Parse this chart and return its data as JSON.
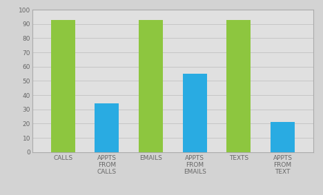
{
  "categories": [
    "CALLS",
    "APPTS\nFROM\nCALLS",
    "EMAILS",
    "APPTS\nFROM\nEMAILS",
    "TEXTS",
    "APPTS\nFROM\nTEXT"
  ],
  "values": [
    93,
    34,
    93,
    55,
    93,
    21
  ],
  "bar_colors": [
    "#8dc63f",
    "#29abe2",
    "#8dc63f",
    "#29abe2",
    "#8dc63f",
    "#29abe2"
  ],
  "ylim": [
    0,
    100
  ],
  "yticks": [
    0,
    10,
    20,
    30,
    40,
    50,
    60,
    70,
    80,
    90,
    100
  ],
  "background_color": "#d3d3d3",
  "plot_bg_color": "#e0e0e0",
  "grid_color": "#c0c0c0",
  "tick_label_fontsize": 6.5,
  "tick_label_color": "#666666",
  "bar_width": 0.55,
  "border_color": "#aaaaaa",
  "figsize": [
    4.68,
    2.83
  ],
  "dpi": 100
}
